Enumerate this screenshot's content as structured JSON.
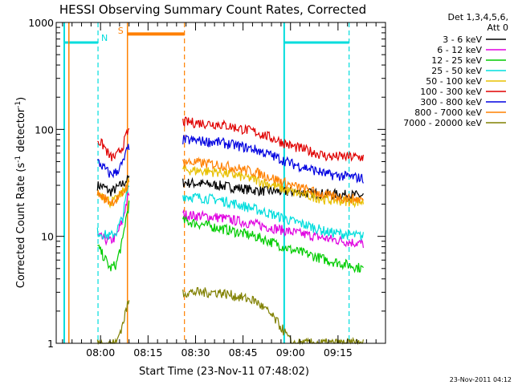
{
  "chart_data": {
    "type": "line",
    "title": "HESSI Observing Summary Count Rates, Corrected",
    "xlabel": "Start Time (23-Nov-11 07:48:02)",
    "ylabel_main": "Corrected Count Rate (s",
    "ylabel_sup1": "-1",
    "ylabel_mid": " detector",
    "ylabel_sup2": "-1",
    "ylabel_end": ")",
    "yscale": "log",
    "ylim": [
      1,
      1000
    ],
    "xlim_minutes": [
      -2,
      102
    ],
    "x_ticks": [
      {
        "label": "08:00",
        "value": 12
      },
      {
        "label": "08:15",
        "value": 27
      },
      {
        "label": "08:30",
        "value": 42
      },
      {
        "label": "08:45",
        "value": 57
      },
      {
        "label": "09:00",
        "value": 72
      },
      {
        "label": "09:15",
        "value": 87
      }
    ],
    "y_ticks": [
      {
        "label": "1",
        "value": 1
      },
      {
        "label": "10",
        "value": 10
      },
      {
        "label": "100",
        "value": 100
      },
      {
        "label": "1000",
        "value": 1000
      }
    ],
    "legend_header": [
      "Det 1,3,4,5,6,",
      "Att 0"
    ],
    "legend_placement": "right",
    "series": [
      {
        "name": "3 - 6 keV",
        "color": "#000000",
        "pre": [
          30,
          29,
          26,
          28,
          31,
          35
        ],
        "post": [
          32,
          30,
          27,
          26,
          25,
          24
        ]
      },
      {
        "name": "6 - 12 keV",
        "color": "#e000e0",
        "pre": [
          10,
          9.5,
          9,
          10,
          14,
          25
        ],
        "post": [
          16,
          15,
          13,
          11,
          9.5,
          8.5
        ]
      },
      {
        "name": "12 - 25 keV",
        "color": "#00cc00",
        "pre": [
          8,
          6.5,
          5,
          5.5,
          9,
          20
        ],
        "post": [
          14,
          12,
          10,
          7.5,
          6,
          5
        ]
      },
      {
        "name": "25 - 50 keV",
        "color": "#00dddd",
        "pre": [
          11,
          10.5,
          10,
          11,
          15,
          30
        ],
        "post": [
          24,
          22,
          18,
          14,
          11,
          10
        ]
      },
      {
        "name": "50 - 100 keV",
        "color": "#e8c000",
        "pre": [
          26,
          24,
          21,
          22,
          26,
          33
        ],
        "post": [
          42,
          40,
          34,
          26,
          22,
          21
        ]
      },
      {
        "name": "100 - 300 keV",
        "color": "#e00000",
        "pre": [
          80,
          70,
          55,
          56,
          70,
          100
        ],
        "post": [
          118,
          112,
          95,
          70,
          56,
          55
        ]
      },
      {
        "name": "300 - 800 keV",
        "color": "#0000e0",
        "pre": [
          50,
          44,
          38,
          40,
          48,
          70
        ],
        "post": [
          80,
          76,
          65,
          48,
          38,
          35
        ]
      },
      {
        "name": "800 - 7000 keV",
        "color": "#ff8000",
        "pre": [
          25,
          23,
          21,
          22,
          25,
          32
        ],
        "post": [
          50,
          47,
          40,
          30,
          24,
          22
        ]
      },
      {
        "name": "7000 - 20000 keV",
        "color": "#808000",
        "pre": [
          1,
          1,
          1,
          1,
          1.5,
          2.5
        ],
        "post": [
          3,
          3,
          2.5,
          1,
          1,
          1
        ]
      }
    ],
    "segments": {
      "pre": [
        11,
        21
      ],
      "post": [
        38,
        60
      ],
      "decay": [
        60,
        95
      ]
    },
    "markers": {
      "N": {
        "label": "N",
        "color": "#00dddd"
      },
      "S": {
        "label": "S",
        "color": "#ff8000"
      }
    },
    "footer": "23-Nov-2011 04:12"
  }
}
